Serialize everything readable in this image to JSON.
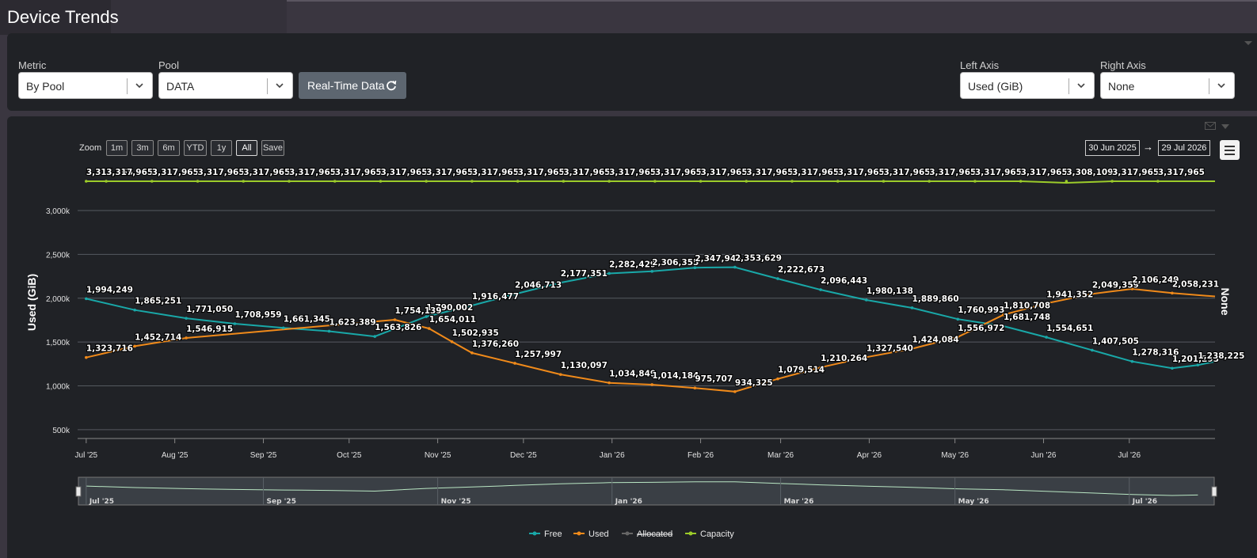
{
  "header": {
    "title": "Device Trends"
  },
  "controls": {
    "metric": {
      "label": "Metric",
      "value": "By Pool"
    },
    "pool": {
      "label": "Pool",
      "value": "DATA"
    },
    "realtime_label": "Real-Time Data",
    "left_axis": {
      "label": "Left Axis",
      "value": "Used (GiB)"
    },
    "right_axis": {
      "label": "Right Axis",
      "value": "None"
    }
  },
  "toolbar": {
    "zoom_label": "Zoom",
    "zoom_buttons": [
      "1m",
      "3m",
      "6m",
      "YTD",
      "1y",
      "All",
      "Save"
    ],
    "active_zoom": "All",
    "date_from": "30 Jun 2025",
    "date_arrow": "→",
    "date_to": "29 Jul 2026"
  },
  "colors": {
    "free": "#19a8a8",
    "used": "#f08a1a",
    "allocated": "#666666",
    "capacity": "#9ccc2a"
  },
  "chart_data": {
    "type": "line",
    "ylabel": "Used (GiB)",
    "right_axis_label": "None",
    "ylim": [
      500000,
      3000000
    ],
    "y_ticks": [
      {
        "value": 500000,
        "label": "500k"
      },
      {
        "value": 1000000,
        "label": "1,000k"
      },
      {
        "value": 1500000,
        "label": "1,500k"
      },
      {
        "value": 2000000,
        "label": "2,000k"
      },
      {
        "value": 2500000,
        "label": "2,500k"
      },
      {
        "value": 3000000,
        "label": "3,000k"
      }
    ],
    "x_ticks": [
      "Jul '25",
      "Aug '25",
      "Sep '25",
      "Oct '25",
      "Nov '25",
      "Dec '25",
      "Jan '26",
      "Feb '26",
      "Mar '26",
      "Apr '26",
      "May '26",
      "Jun '26",
      "Jul '26"
    ],
    "navigator_ticks": [
      "Jul '25",
      "Sep '25",
      "Nov '25",
      "Jan '26",
      "Mar '26",
      "May '26",
      "Jul '26"
    ],
    "series": [
      {
        "name": "Free",
        "points": [
          {
            "x": "2025-07-01",
            "y": 1994249,
            "label": "1,994,249"
          },
          {
            "x": "2025-07-18",
            "y": 1865251,
            "label": "1,865,251"
          },
          {
            "x": "2025-08-05",
            "y": 1771050,
            "label": "1,771,050"
          },
          {
            "x": "2025-08-22",
            "y": 1708959,
            "label": "1,708,959"
          },
          {
            "x": "2025-09-08",
            "y": 1661345,
            "label": "1,661,345"
          },
          {
            "x": "2025-09-24",
            "y": 1623389,
            "label": "1,623,389"
          },
          {
            "x": "2025-10-10",
            "y": 1563826,
            "label": "1,563,826"
          },
          {
            "x": "2025-10-28",
            "y": 1790002,
            "label": "1,790,002"
          },
          {
            "x": "2025-11-13",
            "y": 1916477,
            "label": "1,916,477"
          },
          {
            "x": "2025-11-28",
            "y": 2046713,
            "label": "2,046,713"
          },
          {
            "x": "2025-12-14",
            "y": 2177351,
            "label": "2,177,351"
          },
          {
            "x": "2025-12-31",
            "y": 2282429,
            "label": "2,282,429"
          },
          {
            "x": "2026-01-15",
            "y": 2306355,
            "label": "2,306,355"
          },
          {
            "x": "2026-01-30",
            "y": 2347944,
            "label": "2,347,944"
          },
          {
            "x": "2026-02-13",
            "y": 2353629,
            "label": "2,353,629"
          },
          {
            "x": "2026-02-28",
            "y": 2222673,
            "label": "2,222,673"
          },
          {
            "x": "2026-03-15",
            "y": 2096443,
            "label": "2,096,443"
          },
          {
            "x": "2026-03-31",
            "y": 1980138,
            "label": "1,980,138"
          },
          {
            "x": "2026-04-16",
            "y": 1889860,
            "label": "1,889,860"
          },
          {
            "x": "2026-05-02",
            "y": 1760993,
            "label": "1,760,993"
          },
          {
            "x": "2026-05-18",
            "y": 1681748,
            "label": "1,681,748"
          },
          {
            "x": "2026-06-02",
            "y": 1554651,
            "label": "1,554,651"
          },
          {
            "x": "2026-06-18",
            "y": 1407505,
            "label": "1,407,505"
          },
          {
            "x": "2026-07-02",
            "y": 1278316,
            "label": "1,278,316"
          },
          {
            "x": "2026-07-16",
            "y": 1201293,
            "label": "1,201,293"
          },
          {
            "x": "2026-07-25",
            "y": 1238225,
            "label": "1,238,225"
          }
        ]
      },
      {
        "name": "Used",
        "points": [
          {
            "x": "2025-07-01",
            "y": 1323716,
            "label": "1,323,716"
          },
          {
            "x": "2025-07-18",
            "y": 1452714,
            "label": "1,452,714"
          },
          {
            "x": "2025-08-05",
            "y": 1546915,
            "label": "1,546,915"
          },
          {
            "x": "2025-10-17",
            "y": 1754139,
            "label": "1,754,139"
          },
          {
            "x": "2025-10-29",
            "y": 1654011,
            "label": "1,654,011"
          },
          {
            "x": "2025-11-06",
            "y": 1502935,
            "label": "1,502,935"
          },
          {
            "x": "2025-11-13",
            "y": 1376260,
            "label": "1,376,260"
          },
          {
            "x": "2025-11-28",
            "y": 1257997,
            "label": "1,257,997"
          },
          {
            "x": "2025-12-14",
            "y": 1130097,
            "label": "1,130,097"
          },
          {
            "x": "2025-12-31",
            "y": 1034849,
            "label": "1,034,849"
          },
          {
            "x": "2026-01-15",
            "y": 1014184,
            "label": "1,014,184"
          },
          {
            "x": "2026-01-30",
            "y": 975707,
            "label": "975,707"
          },
          {
            "x": "2026-02-13",
            "y": 934325,
            "label": "934,325"
          },
          {
            "x": "2026-02-28",
            "y": 1079514,
            "label": "1,079,514"
          },
          {
            "x": "2026-03-15",
            "y": 1210264,
            "label": "1,210,264"
          },
          {
            "x": "2026-03-31",
            "y": 1327540,
            "label": "1,327,540"
          },
          {
            "x": "2026-04-16",
            "y": 1424084,
            "label": "1,424,084"
          },
          {
            "x": "2026-05-02",
            "y": 1556972,
            "label": "1,556,972"
          },
          {
            "x": "2026-05-18",
            "y": 1810708,
            "label": "1,810,708"
          },
          {
            "x": "2026-06-02",
            "y": 1941352,
            "label": "1,941,352"
          },
          {
            "x": "2026-06-18",
            "y": 2049359,
            "label": "2,049,359"
          },
          {
            "x": "2026-07-02",
            "y": 2106249,
            "label": "2,106,249"
          },
          {
            "x": "2026-07-16",
            "y": 2058231,
            "label": "2,058,231"
          }
        ]
      },
      {
        "name": "Allocated",
        "hidden": true,
        "points": []
      },
      {
        "name": "Capacity",
        "points": [
          {
            "x": "2025-07-01",
            "y": 3317965,
            "label": "3,317,965"
          },
          {
            "x": "2025-07-08",
            "y": 3317965,
            "label": "3,317,965"
          },
          {
            "x": "2025-07-24",
            "y": 3317965,
            "label": "3,317,965"
          },
          {
            "x": "2025-08-09",
            "y": 3317965,
            "label": "3,317,965"
          },
          {
            "x": "2025-08-25",
            "y": 3317965,
            "label": "3,317,965"
          },
          {
            "x": "2025-09-10",
            "y": 3317965,
            "label": "3,317,965"
          },
          {
            "x": "2025-09-26",
            "y": 3317965,
            "label": "3,317,965"
          },
          {
            "x": "2025-10-12",
            "y": 3317965,
            "label": "3,317,965"
          },
          {
            "x": "2025-10-28",
            "y": 3317965,
            "label": "3,317,965"
          },
          {
            "x": "2025-11-13",
            "y": 3317965,
            "label": "3,317,965"
          },
          {
            "x": "2025-11-29",
            "y": 3317965,
            "label": "3,317,965"
          },
          {
            "x": "2025-12-15",
            "y": 3317965,
            "label": "3,317,965"
          },
          {
            "x": "2025-12-31",
            "y": 3317965,
            "label": "3,317,965"
          },
          {
            "x": "2026-01-16",
            "y": 3317965,
            "label": "3,317,965"
          },
          {
            "x": "2026-02-01",
            "y": 3317965,
            "label": "3,317,965"
          },
          {
            "x": "2026-02-17",
            "y": 3317965,
            "label": "3,317,965"
          },
          {
            "x": "2026-03-05",
            "y": 3317965,
            "label": "3,317,965"
          },
          {
            "x": "2026-03-21",
            "y": 3317965,
            "label": "3,317,965"
          },
          {
            "x": "2026-04-06",
            "y": 3317965,
            "label": "3,317,965"
          },
          {
            "x": "2026-04-22",
            "y": 3317965,
            "label": "3,317,965"
          },
          {
            "x": "2026-05-08",
            "y": 3317965,
            "label": "3,317,965"
          },
          {
            "x": "2026-05-24",
            "y": 3317965,
            "label": "3,317,965"
          },
          {
            "x": "2026-06-09",
            "y": 3308109,
            "label": "3,308,109"
          },
          {
            "x": "2026-06-25",
            "y": 3317965,
            "label": "3,317,965"
          },
          {
            "x": "2026-07-11",
            "y": 3317965,
            "label": "3,317,965"
          }
        ]
      }
    ],
    "legend": {
      "placement": "bottom-center",
      "items": [
        "Free",
        "Used",
        "Allocated",
        "Capacity"
      ]
    }
  }
}
